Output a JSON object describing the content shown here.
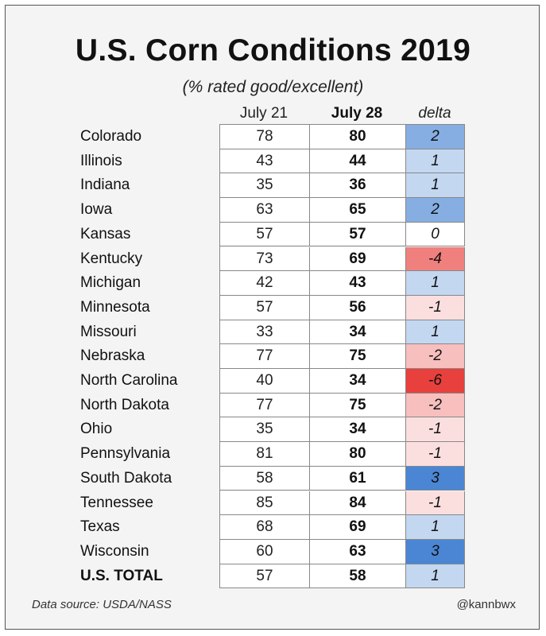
{
  "chart_data": {
    "type": "table",
    "title": "U.S. Corn Conditions 2019",
    "subtitle": "(% rated good/excellent)",
    "columns": [
      "July 21",
      "July 28",
      "delta"
    ],
    "rows": [
      {
        "state": "Colorado",
        "jul21": 78,
        "jul28": 80,
        "delta": 2
      },
      {
        "state": "Illinois",
        "jul21": 43,
        "jul28": 44,
        "delta": 1
      },
      {
        "state": "Indiana",
        "jul21": 35,
        "jul28": 36,
        "delta": 1
      },
      {
        "state": "Iowa",
        "jul21": 63,
        "jul28": 65,
        "delta": 2
      },
      {
        "state": "Kansas",
        "jul21": 57,
        "jul28": 57,
        "delta": 0
      },
      {
        "state": "Kentucky",
        "jul21": 73,
        "jul28": 69,
        "delta": -4
      },
      {
        "state": "Michigan",
        "jul21": 42,
        "jul28": 43,
        "delta": 1
      },
      {
        "state": "Minnesota",
        "jul21": 57,
        "jul28": 56,
        "delta": -1
      },
      {
        "state": "Missouri",
        "jul21": 33,
        "jul28": 34,
        "delta": 1
      },
      {
        "state": "Nebraska",
        "jul21": 77,
        "jul28": 75,
        "delta": -2
      },
      {
        "state": "North Carolina",
        "jul21": 40,
        "jul28": 34,
        "delta": -6
      },
      {
        "state": "North Dakota",
        "jul21": 77,
        "jul28": 75,
        "delta": -2
      },
      {
        "state": "Ohio",
        "jul21": 35,
        "jul28": 34,
        "delta": -1
      },
      {
        "state": "Pennsylvania",
        "jul21": 81,
        "jul28": 80,
        "delta": -1
      },
      {
        "state": "South Dakota",
        "jul21": 58,
        "jul28": 61,
        "delta": 3
      },
      {
        "state": "Tennessee",
        "jul21": 85,
        "jul28": 84,
        "delta": -1
      },
      {
        "state": "Texas",
        "jul21": 68,
        "jul28": 69,
        "delta": 1
      },
      {
        "state": "Wisconsin",
        "jul21": 60,
        "jul28": 63,
        "delta": 3
      },
      {
        "state": "U.S. TOTAL",
        "jul21": 57,
        "jul28": 58,
        "delta": 1
      }
    ],
    "color_scale": {
      "positive": "#4a86d4",
      "negative": "#e8403c",
      "neutral": "#ffffff"
    }
  },
  "footer": {
    "source": "Data source: USDA/NASS",
    "handle": "@kannbwx"
  }
}
